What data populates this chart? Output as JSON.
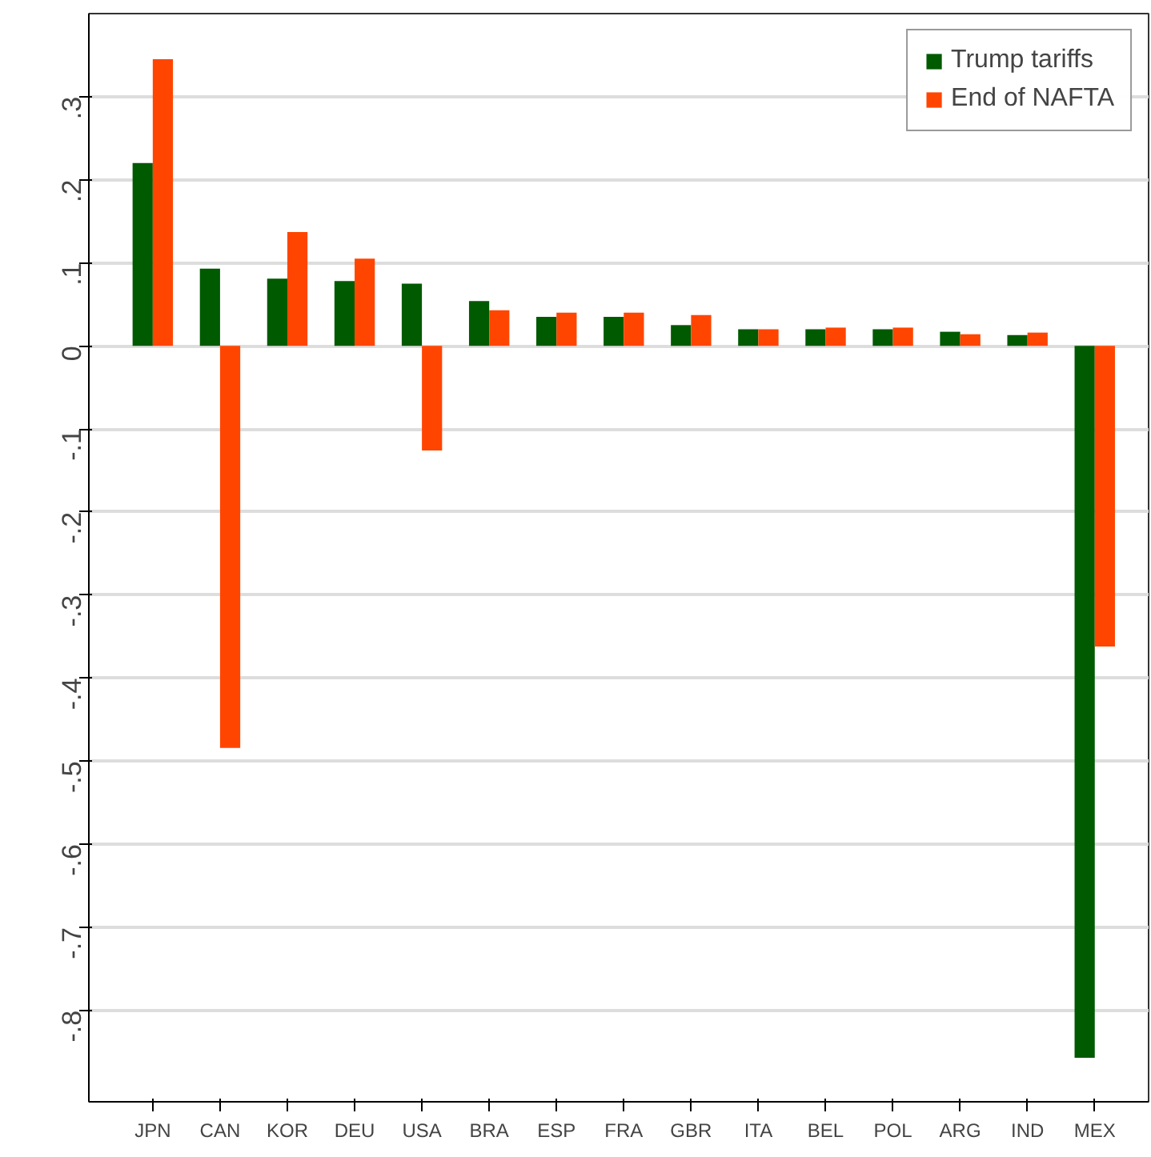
{
  "chart_data": {
    "type": "bar",
    "categories": [
      "JPN",
      "CAN",
      "KOR",
      "DEU",
      "USA",
      "BRA",
      "ESP",
      "FRA",
      "GBR",
      "ITA",
      "BEL",
      "POL",
      "ARG",
      "IND",
      "MEX"
    ],
    "series": [
      {
        "name": "Trump tariffs",
        "color": "#005a00",
        "values": [
          0.22,
          0.093,
          0.081,
          0.078,
          0.075,
          0.054,
          0.035,
          0.035,
          0.025,
          0.02,
          0.02,
          0.02,
          0.017,
          0.013,
          -0.857
        ]
      },
      {
        "name": "End of NAFTA",
        "color": "#ff4500",
        "values": [
          0.345,
          -0.484,
          0.137,
          0.105,
          -0.126,
          0.043,
          0.04,
          0.04,
          0.037,
          0.02,
          0.022,
          0.022,
          0.014,
          0.016,
          -0.362
        ]
      }
    ],
    "ylim": [
      -0.91,
      0.4
    ],
    "yticks": [
      {
        "value": -0.8,
        "label": "-.8"
      },
      {
        "value": -0.7,
        "label": "-.7"
      },
      {
        "value": -0.6,
        "label": "-.6"
      },
      {
        "value": -0.5,
        "label": "-.5"
      },
      {
        "value": -0.4,
        "label": "-.4"
      },
      {
        "value": -0.3,
        "label": "-.3"
      },
      {
        "value": -0.2,
        "label": "-.2"
      },
      {
        "value": -0.1,
        "label": "-.1"
      },
      0,
      {
        "value": 0.1,
        "label": ".1"
      },
      {
        "value": 0.2,
        "label": ".2"
      },
      {
        "value": 0.3,
        "label": ".3"
      }
    ],
    "grid": "y",
    "legend": "top right"
  }
}
